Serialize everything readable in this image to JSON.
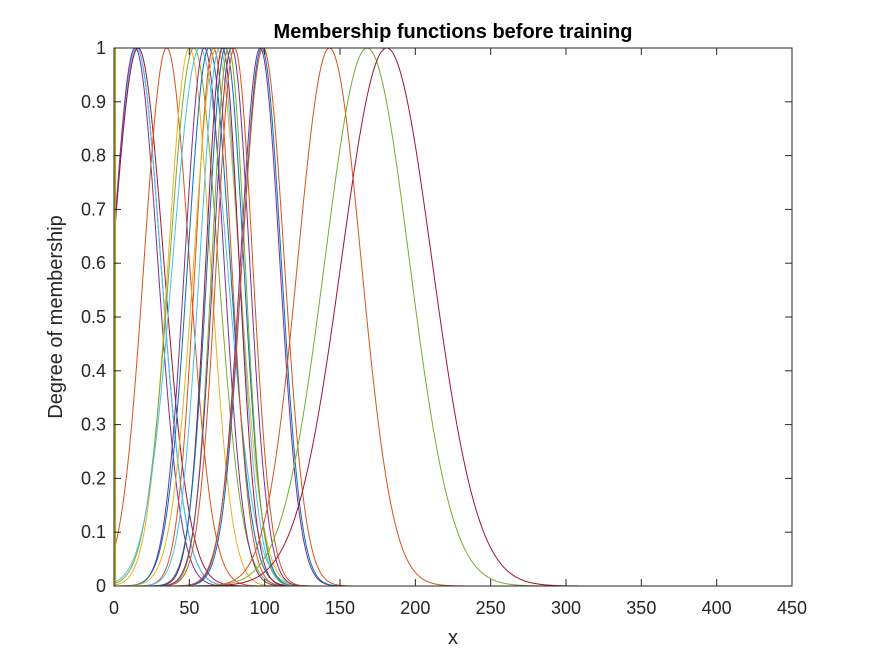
{
  "chart_data": {
    "type": "line",
    "title": "Membership functions before training",
    "xlabel": "x",
    "ylabel": "Degree of membership",
    "xlim": [
      0,
      450
    ],
    "ylim": [
      0,
      1
    ],
    "xticks": [
      "0",
      "50",
      "100",
      "150",
      "200",
      "250",
      "300",
      "350",
      "400",
      "450"
    ],
    "yticks": [
      "0",
      "0.1",
      "0.2",
      "0.3",
      "0.4",
      "0.5",
      "0.6",
      "0.7",
      "0.8",
      "0.9",
      "1"
    ],
    "grid": false,
    "legend": "none",
    "curve_kind": "gaussian",
    "series": [
      {
        "center": 15,
        "sigma": 16,
        "color": "#0072BD"
      },
      {
        "center": 15,
        "sigma": 16,
        "color": "#4DBEEE"
      },
      {
        "center": 14,
        "sigma": 15,
        "color": "#7E2F8E"
      },
      {
        "center": 16,
        "sigma": 17,
        "color": "#A2142F"
      },
      {
        "center": 35,
        "sigma": 15,
        "color": "#D95319"
      },
      {
        "center": 50,
        "sigma": 14,
        "color": "#EDB120"
      },
      {
        "center": 53,
        "sigma": 16,
        "color": "#77AC30"
      },
      {
        "center": 57,
        "sigma": 18,
        "color": "#4DBEEE"
      },
      {
        "center": 60,
        "sigma": 13,
        "color": "#7E2F8E"
      },
      {
        "center": 63,
        "sigma": 14,
        "color": "#0072BD"
      },
      {
        "center": 66,
        "sigma": 12,
        "color": "#D95319"
      },
      {
        "center": 68,
        "sigma": 15,
        "color": "#EDB120"
      },
      {
        "center": 70,
        "sigma": 13,
        "color": "#4DBEEE"
      },
      {
        "center": 72,
        "sigma": 11,
        "color": "#A2142F"
      },
      {
        "center": 74,
        "sigma": 12,
        "color": "#0072BD"
      },
      {
        "center": 76,
        "sigma": 11,
        "color": "#77AC30"
      },
      {
        "center": 78,
        "sigma": 12,
        "color": "#7E2F8E"
      },
      {
        "center": 80,
        "sigma": 12,
        "color": "#D95319"
      },
      {
        "center": 97,
        "sigma": 13,
        "color": "#7E2F8E"
      },
      {
        "center": 98,
        "sigma": 13,
        "color": "#0072BD"
      },
      {
        "center": 99,
        "sigma": 14,
        "color": "#D95319"
      },
      {
        "center": 143,
        "sigma": 21,
        "color": "#D95319"
      },
      {
        "center": 168,
        "sigma": 28,
        "color": "#77AC30"
      },
      {
        "center": 181,
        "sigma": 30,
        "color": "#A2142F"
      }
    ],
    "axis_spikes": [
      {
        "x": 1,
        "color": "#77AC30"
      },
      {
        "x": 0.5,
        "color": "#EDB120"
      }
    ]
  }
}
